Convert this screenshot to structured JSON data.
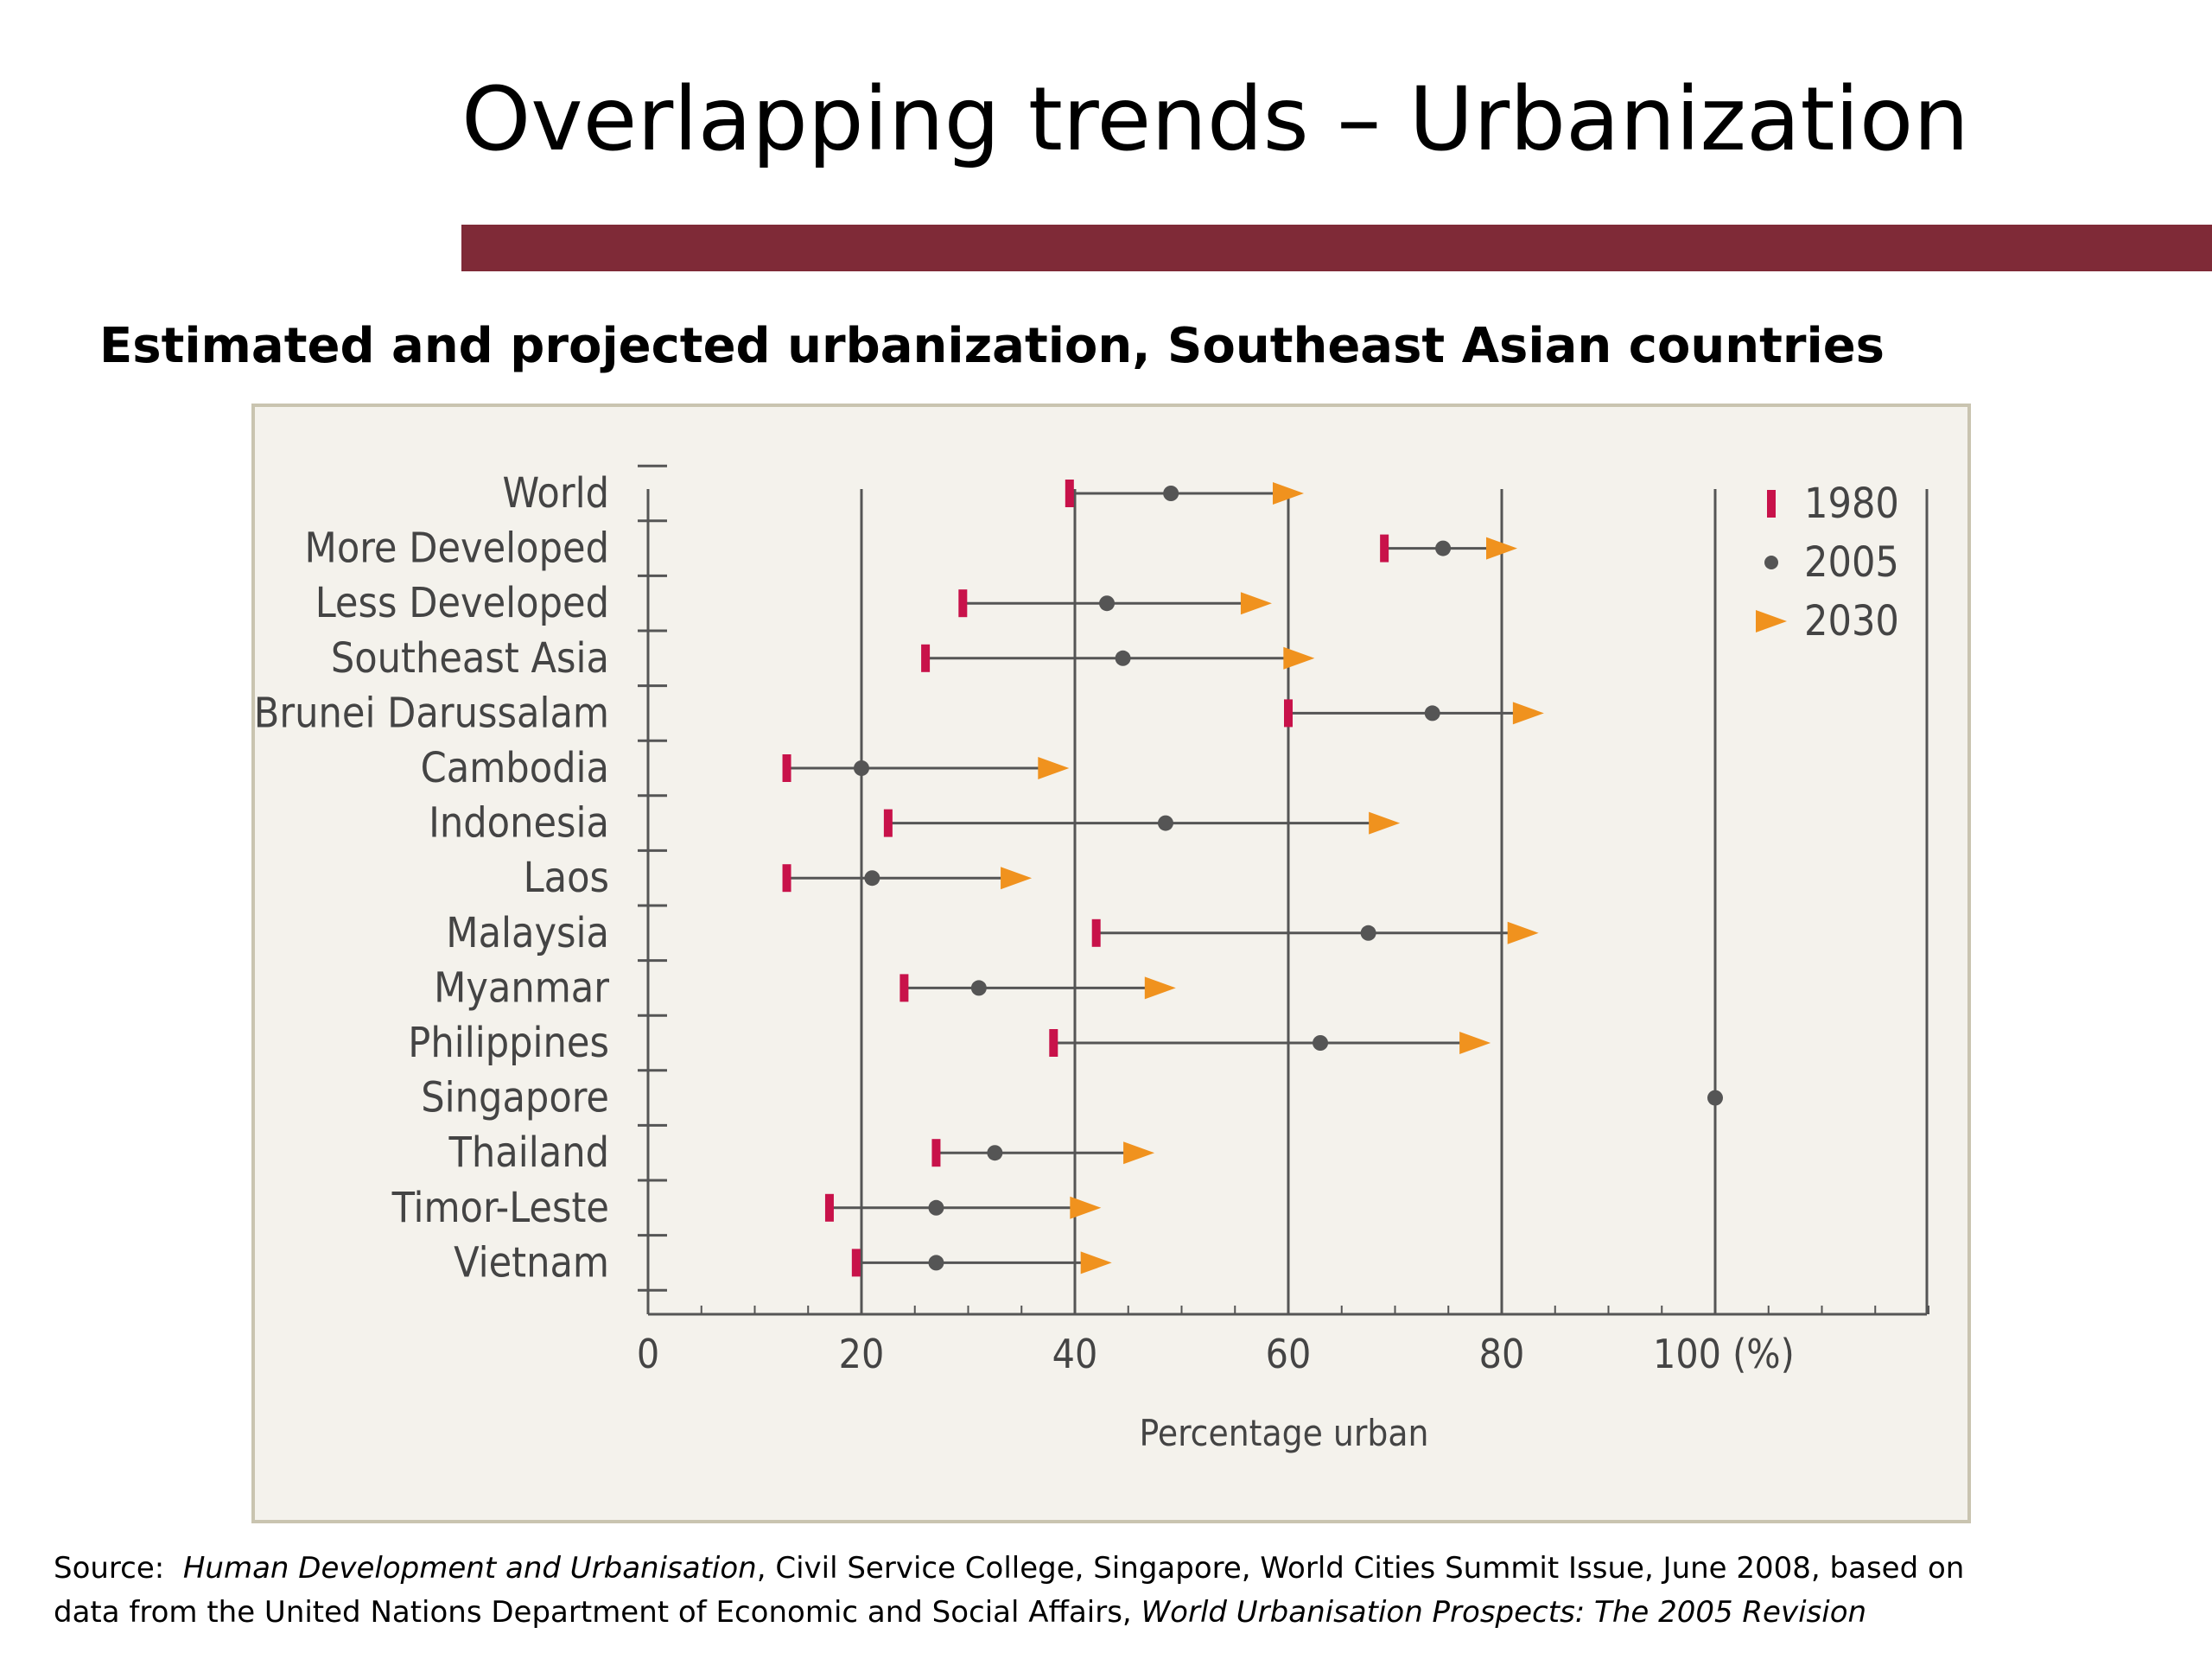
{
  "slide": {
    "title": "Overlapping trends – Urbanization",
    "subtitle": "Estimated and projected urbanization, Southeast Asian countries",
    "accent_color": "#7f2a37"
  },
  "source": {
    "prefix": "Source:  ",
    "book_title": "Human Development and Urbanisation",
    "middle": ", Civil Service College, Singapore, World Cities Summit Issue, June 2008, based on",
    "line2_prefix": "data from the United Nations Department of Economic and Social Affairs, ",
    "report_title": "World Urbanisation Prospects: The 2005 Revision"
  },
  "chart_data": {
    "type": "dot-range",
    "xlabel": "Percentage urban",
    "xlim": [
      0,
      120
    ],
    "xticks": [
      0,
      20,
      40,
      60,
      80,
      100
    ],
    "xtick_labels": [
      "0",
      "20",
      "40",
      "60",
      "80",
      "100 (%)"
    ],
    "grid": true,
    "legend_position": "top-right",
    "categories": [
      "World",
      "More Developed",
      "Less Developed",
      "Southeast Asia",
      "Brunei Darussalam",
      "Cambodia",
      "Indonesia",
      "Laos",
      "Malaysia",
      "Myanmar",
      "Philippines",
      "Singapore",
      "Thailand",
      "Timor-Leste",
      "Vietnam"
    ],
    "series": [
      {
        "name": "1980",
        "marker": "bar",
        "color": "#c8124a",
        "values": [
          39.5,
          69,
          29.5,
          26,
          60,
          13,
          22.5,
          13,
          42,
          24,
          38,
          100,
          27,
          17,
          19.5
        ]
      },
      {
        "name": "2005",
        "marker": "dot",
        "color": "#555555",
        "values": [
          49,
          74.5,
          43,
          44.5,
          73.5,
          20,
          48.5,
          21,
          67.5,
          31,
          63,
          100,
          32.5,
          27,
          27
        ]
      },
      {
        "name": "2030",
        "marker": "arrow",
        "color": "#f0921e",
        "values": [
          60,
          80,
          57,
          61,
          82.5,
          38,
          69,
          34.5,
          82,
          48,
          77.5,
          100,
          46,
          41,
          42
        ]
      }
    ]
  }
}
